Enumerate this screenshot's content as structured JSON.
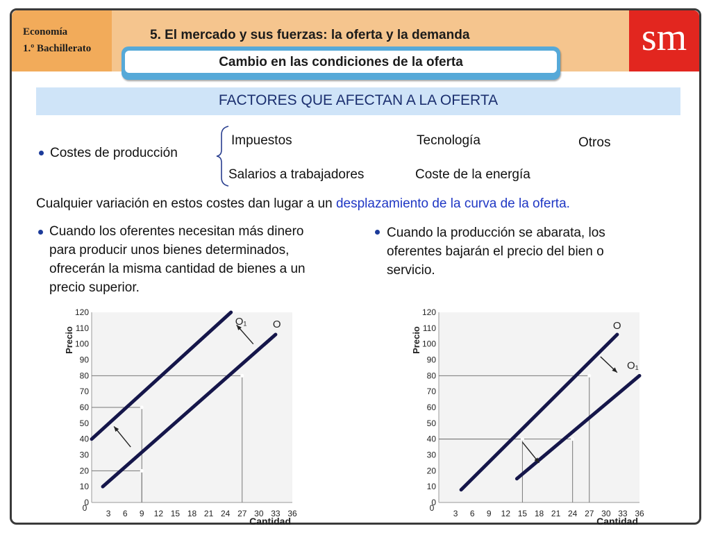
{
  "header": {
    "subject_line1": "Economía",
    "subject_line2": "1.º Bachillerato",
    "unit_title": "5. El mercado y sus fuerzas: la oferta y la demanda",
    "section_title": "Cambio en las condiciones de la oferta",
    "logo": "sm"
  },
  "factors_title": "FACTORES QUE AFECTAN A LA OFERTA",
  "costs": {
    "label": "Costes de producción",
    "items": [
      "Impuestos",
      "Salarios a trabajadores",
      "Tecnología",
      "Coste de la energía",
      "Otros"
    ]
  },
  "variation": {
    "text": "Cualquier variación en estos costes dan lugar a un ",
    "highlight": "desplazamiento de la curva de la oferta."
  },
  "left_point": {
    "lines": [
      "Cuando los oferentes necesitan más dinero",
      "para producir unos bienes determinados,",
      "ofrecerán la misma cantidad de bienes a un",
      "precio superior."
    ]
  },
  "right_point": {
    "lines": [
      "Cuando la producción se abarata, los",
      "oferentes bajarán el precio del bien o",
      "servicio."
    ]
  },
  "colors": {
    "accent_orange": "#f2ab5a",
    "brand_red": "#e2261f",
    "banner_blue": "#56a9d8",
    "bar_blue": "#cfe4f8",
    "link_blue": "#1f37c4",
    "curve": "#15164a"
  },
  "chart_data": [
    {
      "type": "line",
      "title": "",
      "xlabel": "Cantidad",
      "ylabel": "Precio",
      "xticks": [
        0,
        3,
        6,
        9,
        12,
        15,
        18,
        21,
        24,
        27,
        30,
        33,
        36
      ],
      "yticks": [
        0,
        10,
        20,
        30,
        40,
        50,
        60,
        70,
        80,
        90,
        100,
        110,
        120
      ],
      "xlim": [
        0,
        36
      ],
      "ylim": [
        0,
        120
      ],
      "series": [
        {
          "name": "O",
          "x": [
            2,
            33
          ],
          "y": [
            10,
            106
          ]
        },
        {
          "name": "O₁",
          "x": [
            0,
            25
          ],
          "y": [
            40,
            120
          ]
        }
      ],
      "guides": [
        {
          "x": 9,
          "y": 20
        },
        {
          "x": 9,
          "y": 60
        },
        {
          "x": 27,
          "y": 80
        }
      ],
      "arrows": [
        {
          "from": [
            7,
            35
          ],
          "to": [
            4,
            48
          ]
        },
        {
          "from": [
            29,
            100
          ],
          "to": [
            26,
            112
          ]
        }
      ]
    },
    {
      "type": "line",
      "title": "",
      "xlabel": "Cantidad",
      "ylabel": "Precio",
      "xticks": [
        0,
        3,
        6,
        9,
        12,
        15,
        18,
        21,
        24,
        27,
        30,
        33,
        36
      ],
      "yticks": [
        0,
        10,
        20,
        30,
        40,
        50,
        60,
        70,
        80,
        90,
        100,
        110,
        120
      ],
      "xlim": [
        0,
        36
      ],
      "ylim": [
        0,
        120
      ],
      "series": [
        {
          "name": "O",
          "x": [
            4,
            32
          ],
          "y": [
            8,
            106
          ]
        },
        {
          "name": "O₁",
          "x": [
            14,
            36
          ],
          "y": [
            15,
            80
          ]
        }
      ],
      "guides": [
        {
          "x": 15,
          "y": 40
        },
        {
          "x": 24,
          "y": 40
        },
        {
          "x": 27,
          "y": 80
        }
      ],
      "arrows": [
        {
          "from": [
            15,
            38
          ],
          "to": [
            18,
            25
          ]
        },
        {
          "from": [
            29,
            92
          ],
          "to": [
            32,
            82
          ]
        }
      ]
    }
  ]
}
